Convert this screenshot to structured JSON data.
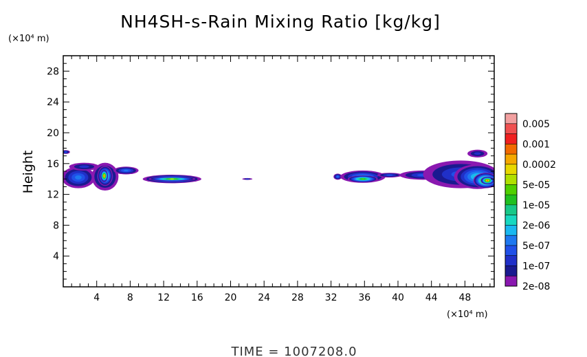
{
  "chart_data": {
    "type": "heatmap",
    "title": "NH4SH-s-Rain Mixing Ratio [kg/kg]",
    "ylabel": "Height",
    "xlabel": "",
    "x_unit": "(×10⁴ m)",
    "y_unit": "(×10⁴ m)",
    "xlim": [
      0,
      51.5
    ],
    "ylim": [
      0,
      30
    ],
    "x_ticks": [
      4,
      8,
      12,
      16,
      20,
      24,
      28,
      32,
      36,
      40,
      44,
      48
    ],
    "y_ticks": [
      4,
      8,
      12,
      16,
      20,
      24,
      28
    ],
    "grid": false,
    "colorbar": {
      "labels": [
        "0.005",
        "0.001",
        "0.0002",
        "5e-05",
        "1e-05",
        "2e-06",
        "5e-07",
        "1e-07",
        "2e-08"
      ],
      "colors": [
        "#F2A0A0",
        "#F05050",
        "#F02020",
        "#F26A00",
        "#F5A800",
        "#E8D800",
        "#B0E000",
        "#50D000",
        "#20C020",
        "#18C888",
        "#18D8C0",
        "#1AB8F0",
        "#1E78F0",
        "#2050E8",
        "#2030C8",
        "#1A1A90",
        "#8A18B0"
      ]
    },
    "features": [
      {
        "x": 0.3,
        "y": 17.5,
        "dx": 0.5,
        "dy": 0.25,
        "level": 3
      },
      {
        "x": 1.8,
        "y": 14.2,
        "dx": 2.0,
        "dy": 1.4,
        "level": 4
      },
      {
        "x": 2.5,
        "y": 15.6,
        "dx": 1.8,
        "dy": 0.5,
        "level": 2
      },
      {
        "x": 5.0,
        "y": 14.3,
        "dx": 1.6,
        "dy": 1.8,
        "level": 4
      },
      {
        "x": 5.0,
        "y": 14.4,
        "dx": 0.9,
        "dy": 1.3,
        "level": 9
      },
      {
        "x": 4.9,
        "y": 14.4,
        "dx": 0.45,
        "dy": 0.8,
        "level": 13
      },
      {
        "x": 7.5,
        "y": 15.1,
        "dx": 1.5,
        "dy": 0.5,
        "level": 4
      },
      {
        "x": 13.0,
        "y": 14.0,
        "dx": 3.5,
        "dy": 0.55,
        "level": 7
      },
      {
        "x": 13.0,
        "y": 14.0,
        "dx": 2.8,
        "dy": 0.3,
        "level": 10
      },
      {
        "x": 22.0,
        "y": 14.0,
        "dx": 0.6,
        "dy": 0.12,
        "level": 2
      },
      {
        "x": 32.8,
        "y": 14.3,
        "dx": 0.5,
        "dy": 0.4,
        "level": 4
      },
      {
        "x": 35.8,
        "y": 14.3,
        "dx": 2.7,
        "dy": 0.8,
        "level": 5
      },
      {
        "x": 35.8,
        "y": 14.0,
        "dx": 1.8,
        "dy": 0.45,
        "level": 9
      },
      {
        "x": 39.0,
        "y": 14.5,
        "dx": 1.5,
        "dy": 0.3,
        "level": 3
      },
      {
        "x": 43.0,
        "y": 14.5,
        "dx": 2.8,
        "dy": 0.6,
        "level": 3
      },
      {
        "x": 47.5,
        "y": 14.6,
        "dx": 4.5,
        "dy": 1.8,
        "level": 3
      },
      {
        "x": 49.5,
        "y": 14.3,
        "dx": 2.8,
        "dy": 1.6,
        "level": 6
      },
      {
        "x": 50.5,
        "y": 13.8,
        "dx": 1.5,
        "dy": 1.0,
        "level": 11
      },
      {
        "x": 50.7,
        "y": 13.8,
        "dx": 0.8,
        "dy": 0.5,
        "level": 13
      },
      {
        "x": 49.5,
        "y": 17.3,
        "dx": 1.2,
        "dy": 0.5,
        "level": 2
      }
    ]
  },
  "footer": {
    "time_label": "TIME  =  1007208.0"
  }
}
